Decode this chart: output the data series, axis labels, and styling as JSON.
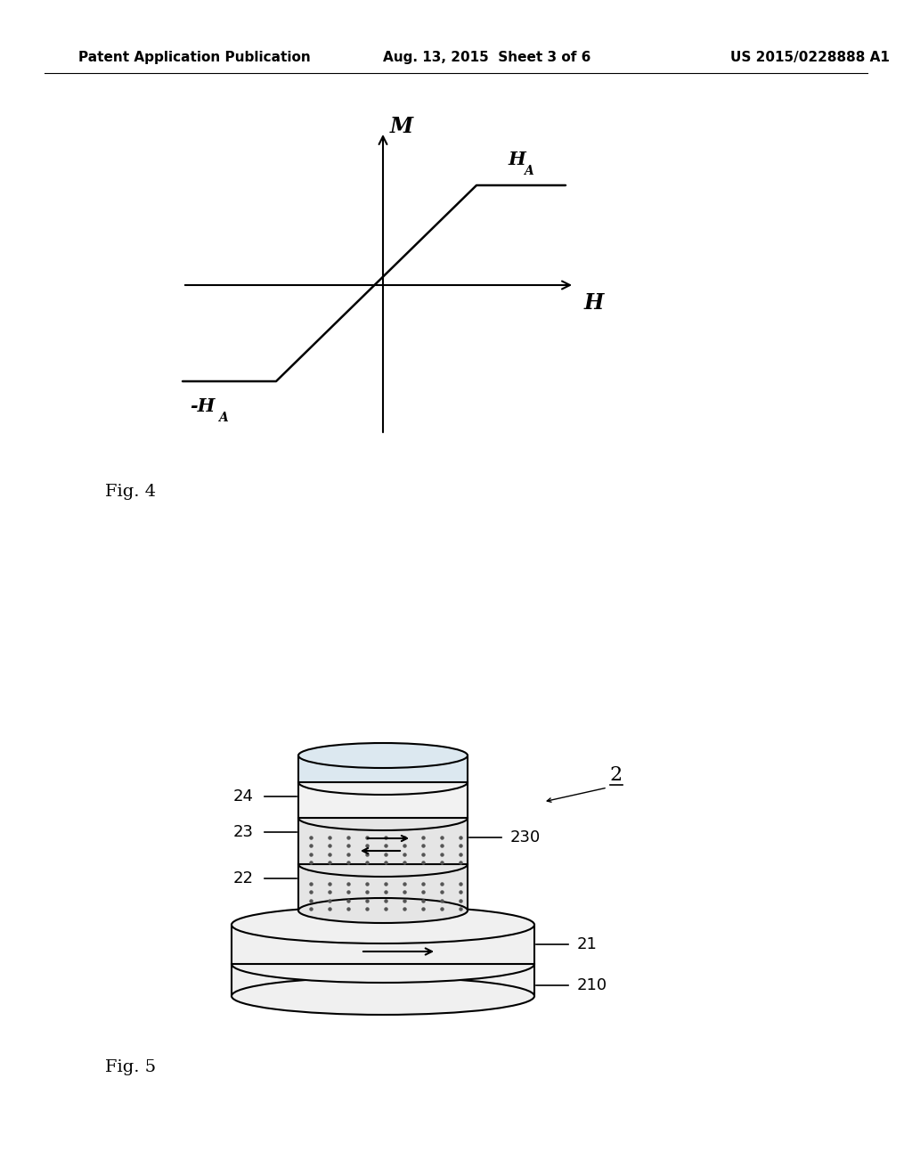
{
  "background_color": "#ffffff",
  "header_left": "Patent Application Publication",
  "header_center": "Aug. 13, 2015  Sheet 3 of 6",
  "header_right": "US 2015/0228888 A1",
  "header_fontsize": 11,
  "fig4_label": "Fig. 4",
  "fig5_label": "Fig. 5",
  "graph_M_label": "M",
  "graph_H_label": "H",
  "label_HA": "HA",
  "label_neg_HA": "-HA",
  "label_2": "2",
  "label_21": "21",
  "label_22": "22",
  "label_23": "23",
  "label_24": "24",
  "label_210": "210",
  "label_230": "230"
}
